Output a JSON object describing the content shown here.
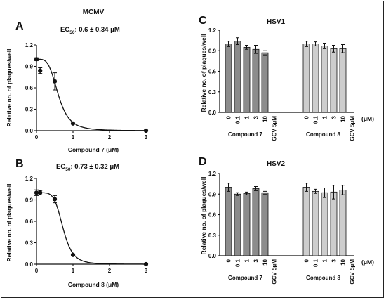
{
  "figure": {
    "panel_labels": [
      "A",
      "B",
      "C",
      "D"
    ]
  },
  "chart_data": [
    {
      "id": "A",
      "type": "scatter",
      "title": "MCMV",
      "ec50_label": "EC",
      "ec50_sub": "50",
      "ec50_value": ": 0.6 ± 0.34 μM",
      "xlabel": "Compound 7 (μM)",
      "ylabel": "Relative no. of plaques/well",
      "xlim": [
        0,
        3
      ],
      "ylim": [
        0,
        1.2
      ],
      "xticks": [
        "0",
        "1",
        "2",
        "3"
      ],
      "yticks": [
        "0.0",
        "0.3",
        "0.6",
        "0.9",
        "1.2"
      ],
      "points": [
        {
          "x": 0,
          "y": 1.0,
          "err": 0.02
        },
        {
          "x": 0.1,
          "y": 0.84,
          "err": 0.04
        },
        {
          "x": 0.5,
          "y": 0.69,
          "err": 0.12
        },
        {
          "x": 1,
          "y": 0.1,
          "err": 0.0
        },
        {
          "x": 3,
          "y": 0.0,
          "err": 0.0
        }
      ],
      "fit": {
        "top": 1.0,
        "ec50": 0.6,
        "hill": 4
      }
    },
    {
      "id": "B",
      "type": "scatter",
      "title": "",
      "ec50_label": "EC",
      "ec50_sub": "50",
      "ec50_value": ": 0.73 ± 0.32 μM",
      "xlabel": "Compound 8 (μM)",
      "ylabel": "Relative no. of plaques/well",
      "xlim": [
        0,
        3
      ],
      "ylim": [
        0,
        1.2
      ],
      "xticks": [
        "0",
        "1",
        "2",
        "3"
      ],
      "yticks": [
        "0.0",
        "0.3",
        "0.6",
        "0.9",
        "1.2"
      ],
      "points": [
        {
          "x": 0,
          "y": 1.0,
          "err": 0.04
        },
        {
          "x": 0.1,
          "y": 1.0,
          "err": 0.03
        },
        {
          "x": 0.5,
          "y": 0.91,
          "err": 0.05
        },
        {
          "x": 1,
          "y": 0.13,
          "err": 0.0
        },
        {
          "x": 3,
          "y": 0.0,
          "err": 0.0
        }
      ],
      "fit": {
        "top": 1.0,
        "ec50": 0.73,
        "hill": 5.5
      }
    },
    {
      "id": "C",
      "type": "bar",
      "title": "HSV1",
      "ylabel": "Relative no. of plaques/well",
      "unit_label": "(μM)",
      "ylim": [
        0,
        1.2
      ],
      "yticks": [
        "0.0",
        "0.3",
        "0.6",
        "0.9",
        "1.2"
      ],
      "categories": [
        "0",
        "0.1",
        "1",
        "3",
        "10",
        "GCV 5μM",
        "0",
        "0.1",
        "1",
        "3",
        "10",
        "GCV 5μM"
      ],
      "groups": [
        {
          "name": "Compound 7",
          "color": "#8c8c8c",
          "values": [
            1.0,
            1.04,
            0.95,
            0.92,
            0.87,
            0.0
          ],
          "errors": [
            0.04,
            0.05,
            0.03,
            0.06,
            0.03,
            0.0
          ]
        },
        {
          "name": "Compound 8",
          "color": "#cdcdcd",
          "values": [
            1.0,
            1.0,
            0.97,
            0.93,
            0.93,
            0.0
          ],
          "errors": [
            0.04,
            0.03,
            0.04,
            0.05,
            0.06,
            0.0
          ]
        }
      ]
    },
    {
      "id": "D",
      "type": "bar",
      "title": "HSV2",
      "ylabel": "Relative no. of plaques/well",
      "unit_label": "(μM)",
      "ylim": [
        0,
        1.2
      ],
      "yticks": [
        "0.0",
        "0.3",
        "0.6",
        "0.9",
        "1.2"
      ],
      "categories": [
        "0",
        "0.1",
        "1",
        "3",
        "10",
        "GCV 5μM",
        "0",
        "0.1",
        "1",
        "3",
        "10",
        "GCV 5μM"
      ],
      "groups": [
        {
          "name": "Compound 7",
          "color": "#8c8c8c",
          "values": [
            1.0,
            0.9,
            0.91,
            0.98,
            0.92,
            0.0
          ],
          "errors": [
            0.06,
            0.02,
            0.02,
            0.03,
            0.02,
            0.0
          ]
        },
        {
          "name": "Compound 8",
          "color": "#cdcdcd",
          "values": [
            1.0,
            0.94,
            0.92,
            0.93,
            0.96,
            0.0
          ],
          "errors": [
            0.06,
            0.03,
            0.07,
            0.1,
            0.07,
            0.0
          ]
        }
      ]
    }
  ]
}
